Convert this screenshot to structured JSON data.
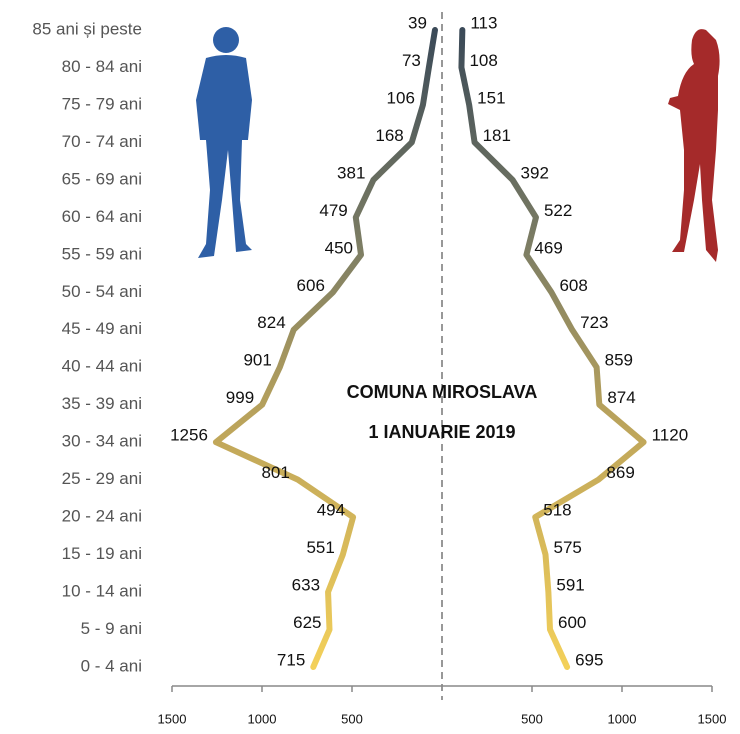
{
  "chart_data": {
    "type": "pyramid-line",
    "title": "COMUNA MIROSLAVA",
    "subtitle": "1 IANUARIE 2019",
    "categories": [
      "0 - 4 ani",
      "5 - 9 ani",
      "10 - 14 ani",
      "15 - 19 ani",
      "20 - 24 ani",
      "25 - 29 ani",
      "30 - 34 ani",
      "35 - 39 ani",
      "40 - 44 ani",
      "45 - 49 ani",
      "50 - 54 ani",
      "55 - 59 ani",
      "60 - 64 ani",
      "65 - 69 ani",
      "70 - 74 ani",
      "75 - 79 ani",
      "80 - 84 ani",
      "85 ani și peste"
    ],
    "series": [
      {
        "side": "left",
        "values": [
          715,
          625,
          633,
          551,
          494,
          801,
          1256,
          999,
          901,
          824,
          606,
          450,
          479,
          381,
          168,
          106,
          73,
          39
        ]
      },
      {
        "side": "right",
        "values": [
          695,
          600,
          591,
          575,
          518,
          869,
          1120,
          874,
          859,
          723,
          608,
          469,
          522,
          392,
          181,
          151,
          108,
          113
        ]
      }
    ],
    "xlim": [
      -1500,
      1500
    ],
    "xticks": [
      {
        "value": -1500,
        "label": "1500"
      },
      {
        "value": -1000,
        "label": "1000"
      },
      {
        "value": -500,
        "label": "500"
      },
      500,
      1000,
      1500
    ]
  }
}
